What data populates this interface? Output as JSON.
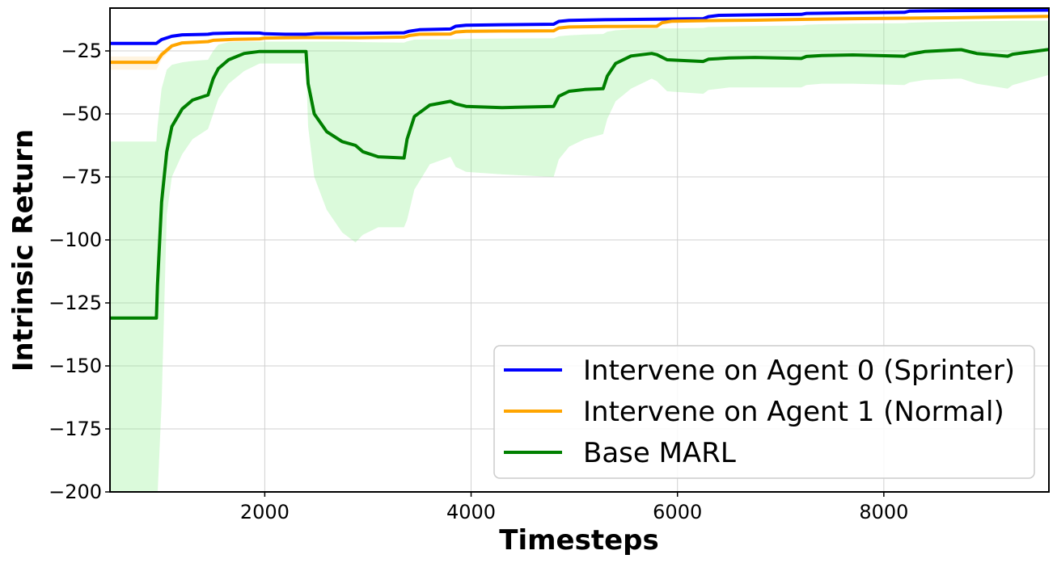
{
  "chart_data": {
    "type": "line",
    "xlabel": "Timesteps",
    "ylabel": "Intrinsic Return",
    "xlim": [
      500,
      9600
    ],
    "ylim": [
      -200,
      -8
    ],
    "xticks": [
      2000,
      4000,
      6000,
      8000
    ],
    "yticks": [
      -200,
      -175,
      -150,
      -125,
      -100,
      -75,
      -50,
      -25
    ],
    "xtick_labels": [
      "2000",
      "4000",
      "6000",
      "8000"
    ],
    "ytick_labels": [
      "−200",
      "−175",
      "−150",
      "−125",
      "−100",
      "−75",
      "−50",
      "−25"
    ],
    "grid": true,
    "legend_position": "lower-right",
    "series": [
      {
        "name": "Intervene on Agent 0 (Sprinter)",
        "color": "#0000ff",
        "x": [
          500,
          950,
          1000,
          1100,
          1200,
          1450,
          1500,
          1700,
          1950,
          2000,
          2200,
          2400,
          2500,
          2900,
          3350,
          3400,
          3500,
          3800,
          3850,
          3950,
          4300,
          4800,
          4850,
          4950,
          5300,
          5800,
          6250,
          6300,
          6400,
          6750,
          7200,
          7250,
          7700,
          8200,
          8250,
          8700,
          9200,
          9600
        ],
        "y": [
          -22,
          -22,
          -20.5,
          -19.2,
          -18.6,
          -18.4,
          -18.1,
          -17.9,
          -17.9,
          -18.2,
          -18.4,
          -18.4,
          -18.1,
          -18.0,
          -17.8,
          -17.2,
          -16.6,
          -16.3,
          -15.2,
          -14.8,
          -14.6,
          -14.4,
          -13.3,
          -12.9,
          -12.6,
          -12.4,
          -12.2,
          -11.4,
          -10.9,
          -10.7,
          -10.5,
          -10.1,
          -9.9,
          -9.7,
          -9.2,
          -9.0,
          -8.9,
          -8.8
        ]
      },
      {
        "name": "Intervene on Agent 1 (Normal)",
        "color": "#ffa500",
        "x": [
          500,
          950,
          1000,
          1100,
          1200,
          1450,
          1500,
          1700,
          1950,
          2000,
          2200,
          2400,
          2500,
          2900,
          3350,
          3400,
          3500,
          3800,
          3850,
          3950,
          4300,
          4800,
          4850,
          4950,
          5300,
          5800,
          5850,
          5950,
          6250,
          6750,
          7200,
          7700,
          8200,
          8700,
          9200,
          9600
        ],
        "y": [
          -29.5,
          -29.5,
          -26.5,
          -23,
          -21.8,
          -21.3,
          -20.8,
          -20.4,
          -20.2,
          -19.9,
          -19.8,
          -19.7,
          -19.7,
          -19.8,
          -19.5,
          -18.9,
          -18.4,
          -18.3,
          -17.5,
          -17.2,
          -17.1,
          -17.0,
          -15.9,
          -15.5,
          -15.3,
          -15.2,
          -13.8,
          -13.2,
          -13.0,
          -12.8,
          -12.5,
          -12.2,
          -12.0,
          -11.8,
          -11.5,
          -11.3
        ]
      },
      {
        "name": "Base MARL",
        "color": "#008000",
        "x": [
          500,
          950,
          960,
          1000,
          1050,
          1100,
          1200,
          1300,
          1450,
          1500,
          1550,
          1650,
          1800,
          1950,
          2400,
          2420,
          2480,
          2600,
          2750,
          2880,
          2950,
          3100,
          3350,
          3380,
          3450,
          3600,
          3800,
          3850,
          3950,
          4300,
          4800,
          4850,
          4950,
          5100,
          5280,
          5320,
          5400,
          5550,
          5750,
          5800,
          5900,
          6250,
          6300,
          6500,
          6750,
          7200,
          7250,
          7400,
          7700,
          8200,
          8250,
          8400,
          8700,
          8750,
          8900,
          9200,
          9250,
          9600
        ],
        "y": [
          -131,
          -131,
          -118,
          -85,
          -65,
          -55,
          -48,
          -44.5,
          -42.5,
          -36,
          -32,
          -28.5,
          -26,
          -25.2,
          -25.2,
          -38,
          -50,
          -57,
          -61,
          -62.5,
          -65,
          -67,
          -67.5,
          -60,
          -51,
          -46.5,
          -45,
          -46,
          -47,
          -47.5,
          -47,
          -43,
          -41,
          -40.3,
          -40,
          -35,
          -30,
          -27,
          -26,
          -26.5,
          -28.5,
          -29.2,
          -28.3,
          -27.8,
          -27.6,
          -28,
          -27.2,
          -26.8,
          -26.6,
          -27.1,
          -26.3,
          -25.2,
          -24.6,
          -24.5,
          -26,
          -27.1,
          -26.3,
          -24.4
        ]
      }
    ],
    "band": {
      "series": "Base MARL",
      "color": "#90ee90",
      "x": [
        500,
        950,
        960,
        1000,
        1050,
        1100,
        1200,
        1300,
        1450,
        1500,
        1550,
        1650,
        1800,
        1950,
        2400,
        2420,
        2480,
        2600,
        2750,
        2880,
        2950,
        3100,
        3350,
        3380,
        3450,
        3600,
        3800,
        3850,
        3950,
        4300,
        4800,
        4850,
        4950,
        5100,
        5280,
        5320,
        5400,
        5550,
        5750,
        5800,
        5900,
        6250,
        6300,
        6500,
        6750,
        7200,
        7250,
        7400,
        7700,
        8200,
        8250,
        8400,
        8700,
        8750,
        8900,
        9200,
        9250,
        9600
      ],
      "upper": [
        -61,
        -61,
        -55,
        -40,
        -32.5,
        -30.5,
        -29.5,
        -29,
        -28.5,
        -25,
        -22.5,
        -21.5,
        -21.3,
        -21.3,
        -21.3,
        -21.3,
        -21.3,
        -21.3,
        -21.3,
        -21.4,
        -21.5,
        -21.6,
        -21.7,
        -21.2,
        -20.5,
        -20.4,
        -20.4,
        -20.3,
        -20.2,
        -20.1,
        -20.0,
        -19.2,
        -18.8,
        -18.5,
        -18.3,
        -17.4,
        -16.8,
        -16.4,
        -16.2,
        -16.1,
        -16.1,
        -15.9,
        -15.5,
        -15.3,
        -15.1,
        -14.9,
        -14.6,
        -14.4,
        -14.2,
        -14.0,
        -13.8,
        -13.6,
        -13.4,
        -13.3,
        -13.2,
        -13.1,
        -13.0,
        -13.0
      ],
      "lower": [
        -202,
        -202,
        -202,
        -165,
        -90,
        -75,
        -66,
        -60,
        -56,
        -50,
        -44,
        -38,
        -33,
        -30,
        -30,
        -55,
        -75,
        -88,
        -97,
        -101,
        -98,
        -95,
        -95,
        -92,
        -80,
        -70,
        -67,
        -71,
        -73,
        -74,
        -75,
        -68,
        -63,
        -60,
        -58,
        -52,
        -45,
        -40,
        -36,
        -37,
        -41,
        -42,
        -40.5,
        -39.5,
        -39.5,
        -39.5,
        -38.5,
        -38,
        -38,
        -38.5,
        -37.5,
        -36.5,
        -36,
        -36,
        -38,
        -40,
        -38.5,
        -34.5
      ]
    },
    "orange_band": {
      "x": [
        500,
        950,
        1000,
        1100
      ],
      "upper": [
        -27.2,
        -27.2,
        -25.2,
        -22.3
      ],
      "lower": [
        -32.5,
        -32.5,
        -28.5,
        -24.0
      ]
    }
  }
}
